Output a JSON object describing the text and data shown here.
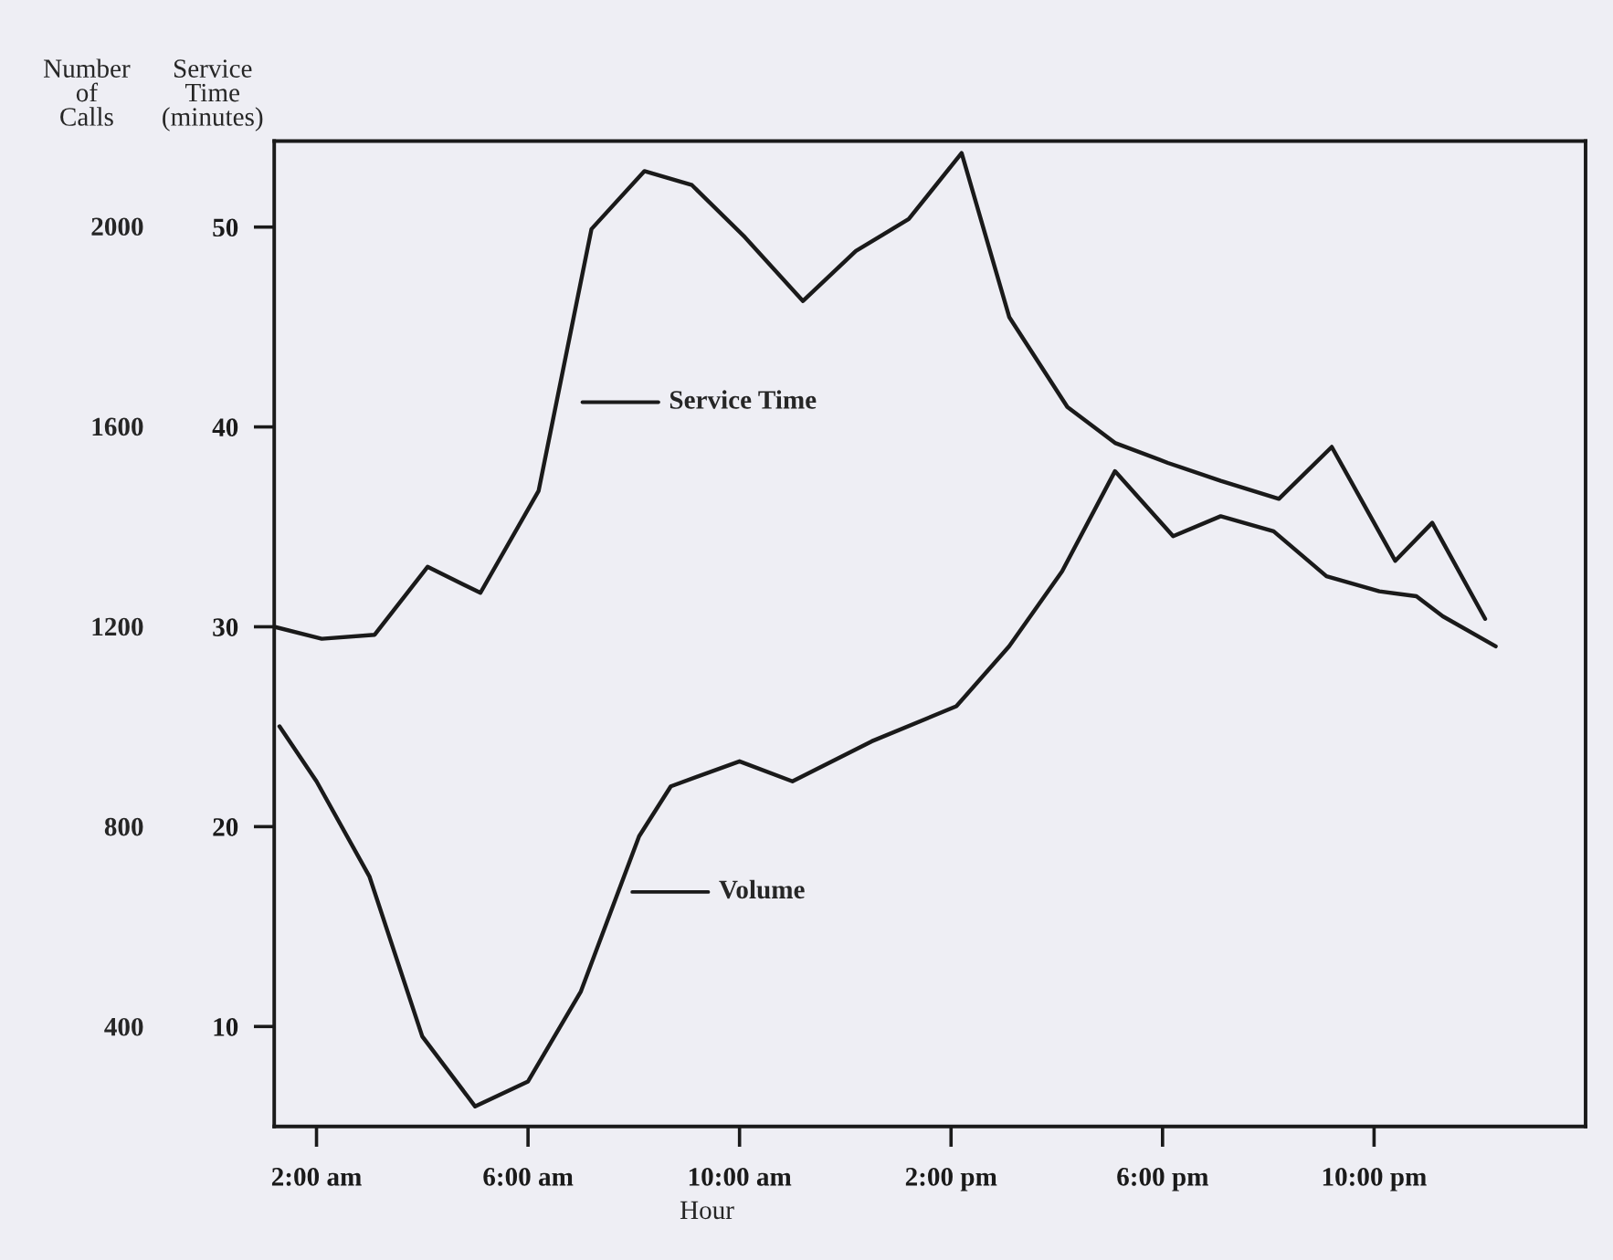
{
  "chart_data": {
    "type": "line",
    "xlabel": "Hour",
    "ylabel": "Service\nTime\n(minutes)",
    "y2label": "Number\nof\nCalls",
    "xlim": [
      1.2,
      26.0
    ],
    "xticks": [
      {
        "value": 2,
        "label": "2:00 am"
      },
      {
        "value": 6,
        "label": "6:00 am"
      },
      {
        "value": 10,
        "label": "10:00 am"
      },
      {
        "value": 14,
        "label": "2:00 pm"
      },
      {
        "value": 18,
        "label": "6:00 pm"
      },
      {
        "value": 22,
        "label": "10:00 pm"
      }
    ],
    "ylim": [
      5.0,
      54.3
    ],
    "yticks": [
      10,
      20,
      30,
      40,
      50
    ],
    "y2lim": [
      200,
      2170
    ],
    "y2ticks": [
      400,
      800,
      1200,
      1600,
      2000
    ],
    "grid": false,
    "legend": "center",
    "marker": "none",
    "line_style": "solid",
    "series": [
      {
        "name": "Service Time",
        "color": "#1a1a1a",
        "x": [
          1.2,
          2.1,
          3.1,
          4.1,
          5.1,
          6.2,
          7.2,
          8.2,
          9.1,
          10.1,
          11.2,
          12.2,
          13.2,
          14.2,
          15.1,
          16.2,
          17.1,
          18.1,
          19.1,
          20.2,
          21.2,
          22.4,
          23.1,
          24.1
        ],
        "values": [
          30.0,
          29.4,
          29.6,
          33.0,
          31.7,
          36.8,
          49.9,
          52.8,
          52.1,
          49.5,
          46.3,
          48.8,
          50.4,
          53.7,
          45.5,
          41.0,
          39.2,
          38.2,
          37.3,
          36.4,
          39.0,
          33.3,
          35.2,
          30.4
        ]
      },
      {
        "name": "Volume",
        "color": "#1a1a1a",
        "axis": "y2",
        "x": [
          1.3,
          2.0,
          3.0,
          4.0,
          5.0,
          6.0,
          7.0,
          8.1,
          8.7,
          10.0,
          11.0,
          12.5,
          14.1,
          15.1,
          16.1,
          17.1,
          18.2,
          19.1,
          20.1,
          21.1,
          22.1,
          22.8,
          23.3,
          24.3
        ],
        "values": [
          1000,
          890,
          700,
          380,
          240,
          290,
          470,
          780,
          880,
          930,
          890,
          970,
          1040,
          1160,
          1310,
          1510,
          1380,
          1420,
          1390,
          1300,
          1270,
          1260,
          1220,
          1160
        ]
      }
    ]
  }
}
